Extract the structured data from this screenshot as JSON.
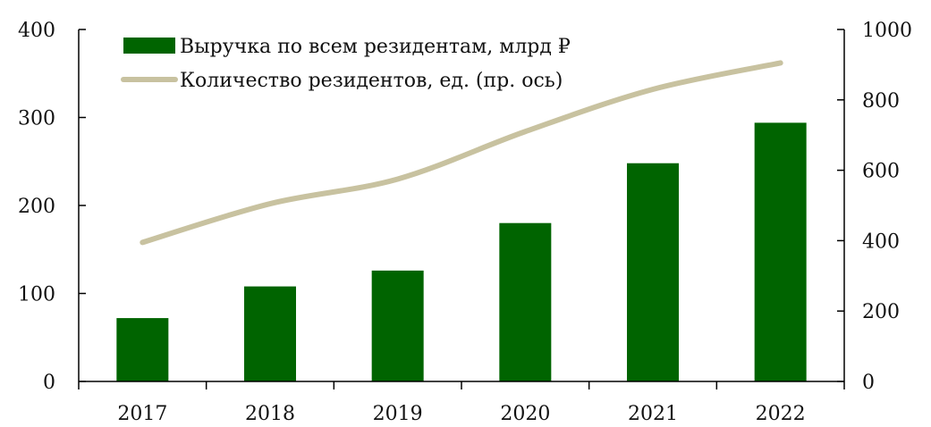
{
  "chart_data": {
    "type": "bar",
    "categories": [
      "2017",
      "2018",
      "2019",
      "2020",
      "2021",
      "2022"
    ],
    "series": [
      {
        "name": "Выручка по всем резидентам, млрд ₽",
        "type": "bar",
        "axis": "left",
        "color": "#006400",
        "values": [
          72,
          108,
          126,
          180,
          248,
          294
        ]
      },
      {
        "name": "Количество резидентов, ед. (пр. ось)",
        "type": "line",
        "axis": "right",
        "color": "#c8c2a0",
        "values": [
          395,
          505,
          575,
          710,
          830,
          905
        ]
      }
    ],
    "y_left": {
      "min": 0,
      "max": 400,
      "ticks": [
        0,
        100,
        200,
        300,
        400
      ]
    },
    "y_right": {
      "min": 0,
      "max": 1000,
      "ticks": [
        0,
        200,
        400,
        600,
        800,
        1000
      ]
    },
    "legend": "top-left",
    "grid": false
  }
}
